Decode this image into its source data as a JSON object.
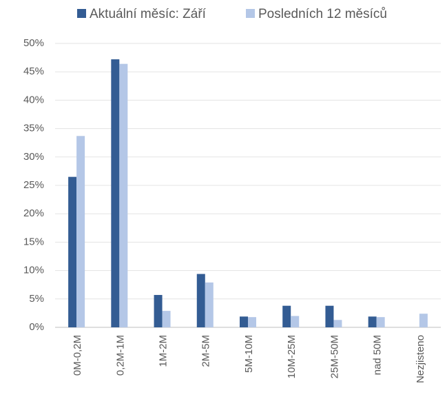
{
  "chart_data": {
    "type": "bar",
    "categories": [
      "0M-0,2M",
      "0,2M-1M",
      "1M-2M",
      "2M-5M",
      "5M-10M",
      "10M-25M",
      "25M-50M",
      "nad 50M",
      "Nezjisteno"
    ],
    "series": [
      {
        "name": "Aktuální měsíc: Září",
        "color": "#335c93",
        "values": [
          26.5,
          47.2,
          5.7,
          9.4,
          1.9,
          3.8,
          3.8,
          1.9,
          0
        ]
      },
      {
        "name": "Posledních 12 měsíců",
        "color": "#b4c7e7",
        "values": [
          33.7,
          46.4,
          2.9,
          7.9,
          1.8,
          2.0,
          1.3,
          1.8,
          2.4
        ]
      }
    ],
    "ylim": [
      0,
      50
    ],
    "yticks": [
      {
        "value": 0,
        "label": "0%"
      },
      {
        "value": 5,
        "label": "5%"
      },
      {
        "value": 10,
        "label": "10%"
      },
      {
        "value": 15,
        "label": "15%"
      },
      {
        "value": 20,
        "label": "20%"
      },
      {
        "value": 25,
        "label": "25%"
      },
      {
        "value": 30,
        "label": "30%"
      },
      {
        "value": 35,
        "label": "35%"
      },
      {
        "value": 40,
        "label": "40%"
      },
      {
        "value": 45,
        "label": "45%"
      },
      {
        "value": 50,
        "label": "50%"
      }
    ],
    "grid": true,
    "legend": "top"
  }
}
